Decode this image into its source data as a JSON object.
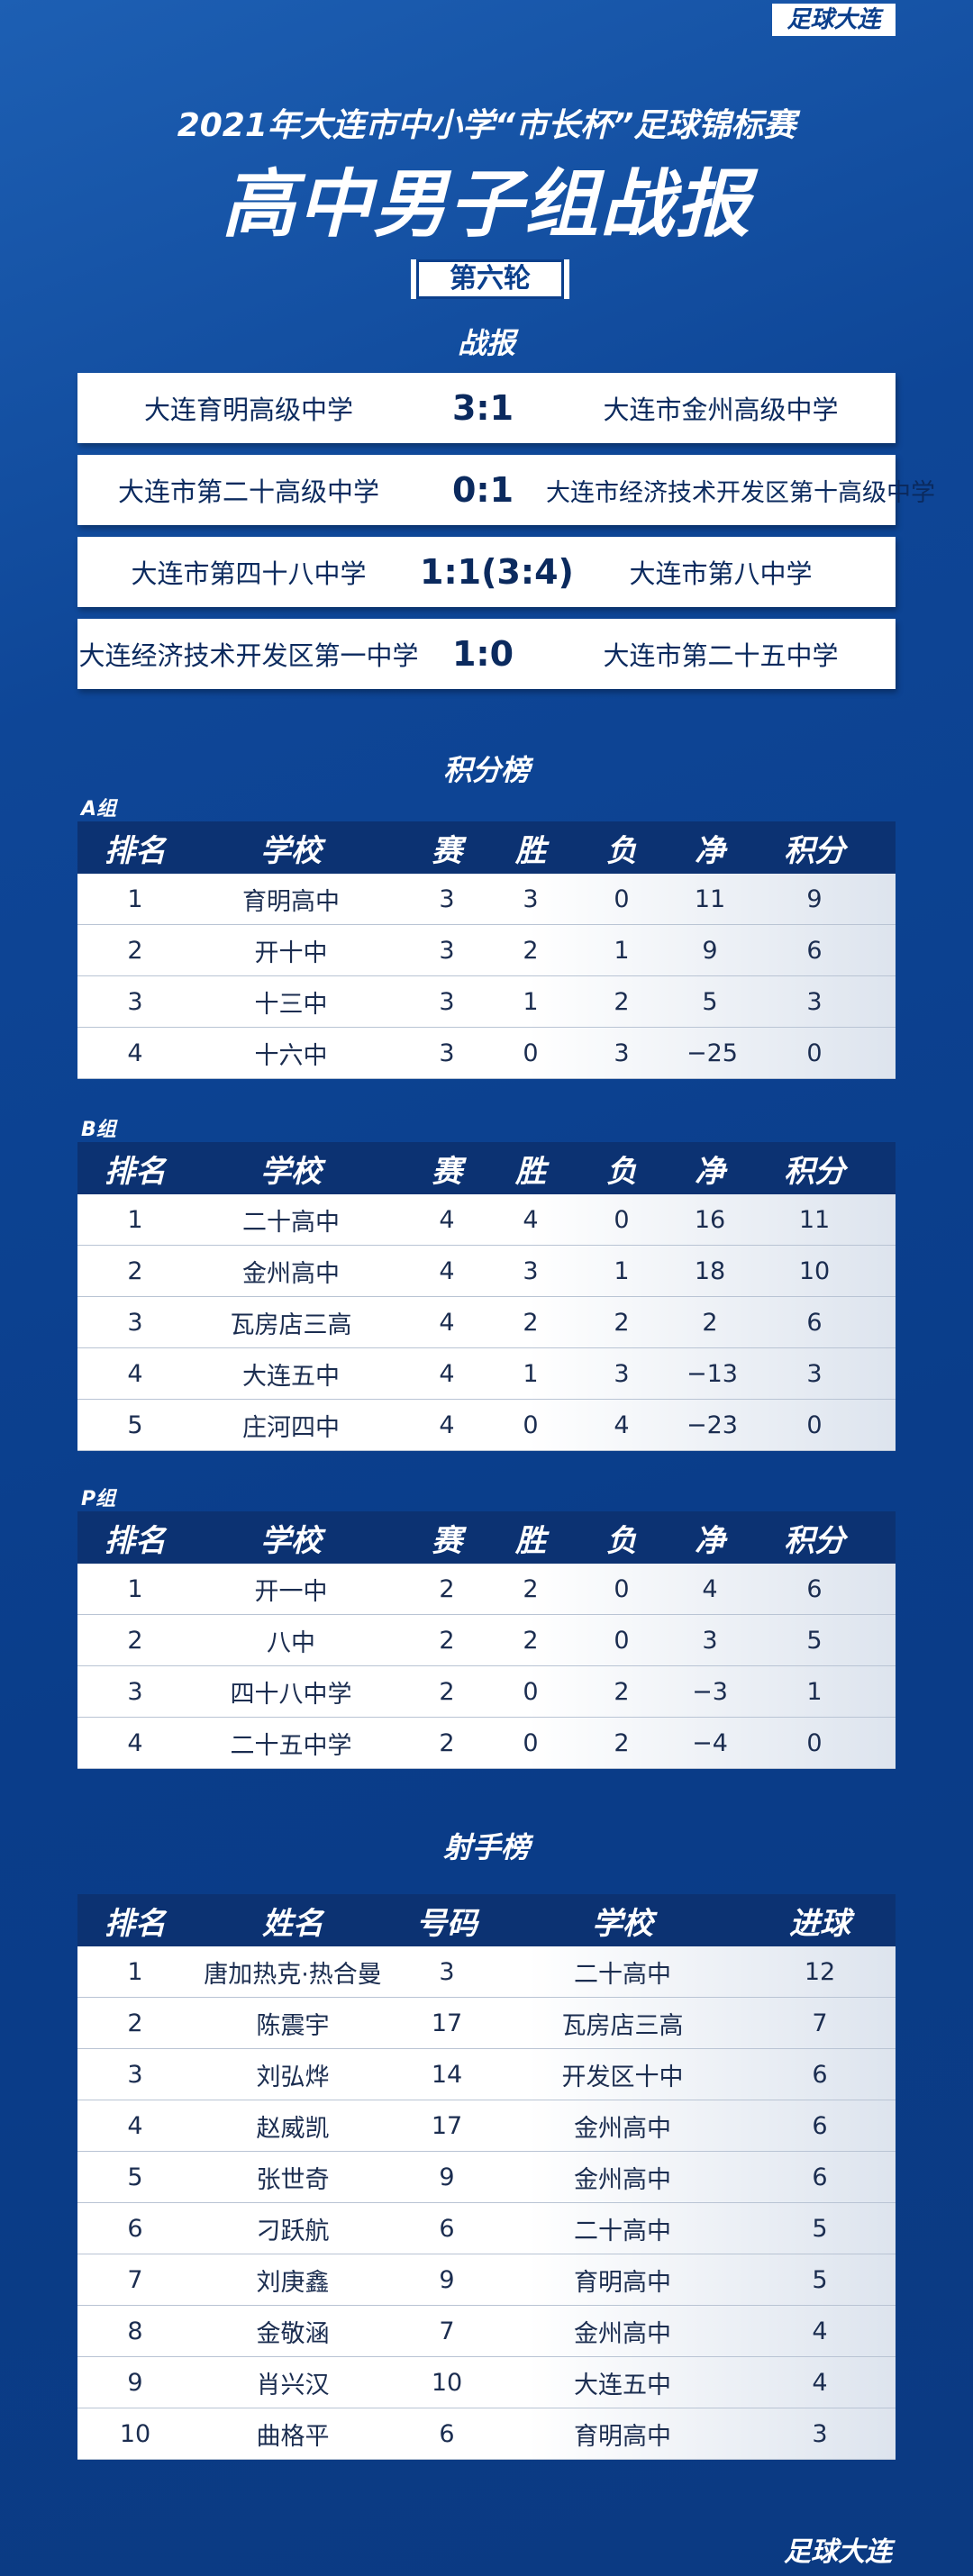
{
  "header": {
    "logo": "足球大连",
    "title": "2021年大连市中小学“市长杯”足球锦标赛",
    "subtitle": "高中男子组战报",
    "round": "第六轮"
  },
  "report": {
    "heading": "战报",
    "matches": [
      {
        "home": "大连育明高级中学",
        "score": "3:1",
        "away": "大连市金州高级中学"
      },
      {
        "home": "大连市第二十高级中学",
        "score": "0:1",
        "away": "大连市经济技术开发区第十高级中学"
      },
      {
        "home": "大连市第四十八中学",
        "score": "1:1(3:4)",
        "away": "大连市第八中学"
      },
      {
        "home": "大连经济技术开发区第一中学",
        "score": "1:0",
        "away": "大连市第二十五中学"
      }
    ]
  },
  "standings": {
    "heading": "积分榜",
    "columns": [
      "排名",
      "学校",
      "赛",
      "胜",
      "负",
      "净",
      "积分"
    ],
    "groups": [
      {
        "name": "A组",
        "rows": [
          [
            "1",
            "育明高中",
            "3",
            "3",
            "0",
            "11",
            "9"
          ],
          [
            "2",
            "开十中",
            "3",
            "2",
            "1",
            "9",
            "6"
          ],
          [
            "3",
            "十三中",
            "3",
            "1",
            "2",
            "5",
            "3"
          ],
          [
            "4",
            "十六中",
            "3",
            "0",
            "3",
            "−25",
            "0"
          ]
        ]
      },
      {
        "name": "B组",
        "rows": [
          [
            "1",
            "二十高中",
            "4",
            "4",
            "0",
            "16",
            "11"
          ],
          [
            "2",
            "金州高中",
            "4",
            "3",
            "1",
            "18",
            "10"
          ],
          [
            "3",
            "瓦房店三高",
            "4",
            "2",
            "2",
            "2",
            "6"
          ],
          [
            "4",
            "大连五中",
            "4",
            "1",
            "3",
            "−13",
            "3"
          ],
          [
            "5",
            "庄河四中",
            "4",
            "0",
            "4",
            "−23",
            "0"
          ]
        ]
      },
      {
        "name": "P组",
        "rows": [
          [
            "1",
            "开一中",
            "2",
            "2",
            "0",
            "4",
            "6"
          ],
          [
            "2",
            "八中",
            "2",
            "2",
            "0",
            "3",
            "5"
          ],
          [
            "3",
            "四十八中学",
            "2",
            "0",
            "2",
            "−3",
            "1"
          ],
          [
            "4",
            "二十五中学",
            "2",
            "0",
            "2",
            "−4",
            "0"
          ]
        ]
      }
    ]
  },
  "scorers": {
    "heading": "射手榜",
    "columns": [
      "排名",
      "姓名",
      "号码",
      "学校",
      "进球"
    ],
    "rows": [
      [
        "1",
        "唐加热克·热合曼",
        "3",
        "二十高中",
        "12"
      ],
      [
        "2",
        "陈震宇",
        "17",
        "瓦房店三高",
        "7"
      ],
      [
        "3",
        "刘弘烨",
        "14",
        "开发区十中",
        "6"
      ],
      [
        "4",
        "赵威凯",
        "17",
        "金州高中",
        "6"
      ],
      [
        "5",
        "张世奇",
        "9",
        "金州高中",
        "6"
      ],
      [
        "6",
        "刁跃航",
        "6",
        "二十高中",
        "5"
      ],
      [
        "7",
        "刘庚鑫",
        "9",
        "育明高中",
        "5"
      ],
      [
        "8",
        "金敬涵",
        "7",
        "金州高中",
        "4"
      ],
      [
        "9",
        "肖兴汉",
        "10",
        "大连五中",
        "4"
      ],
      [
        "10",
        "曲格平",
        "6",
        "育明高中",
        "3"
      ]
    ]
  },
  "footer": {
    "logo": "足球大连"
  }
}
